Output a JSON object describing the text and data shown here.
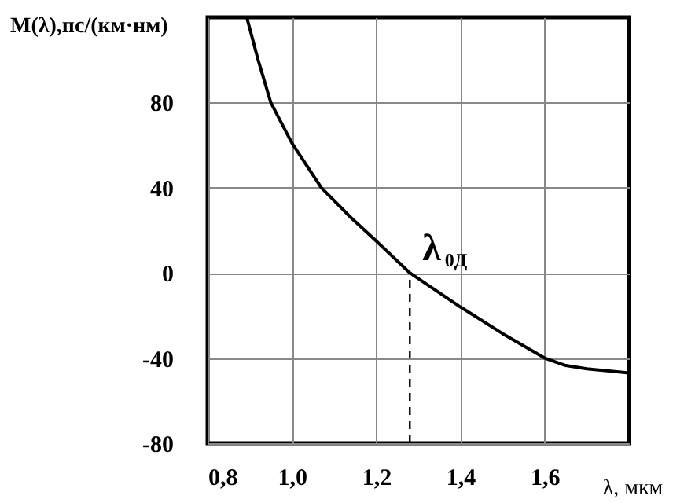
{
  "chart_data": {
    "type": "line",
    "xlabel": "λ, мкм",
    "ylabel": "M(λ),пс/(км·нм)",
    "x": [
      0.893,
      0.92,
      0.95,
      1.0,
      1.07,
      1.14,
      1.2,
      1.28,
      1.4,
      1.5,
      1.6,
      1.65,
      1.7,
      1.8
    ],
    "series": [
      {
        "color": "#000000",
        "values": [
          120,
          100,
          80,
          61,
          40,
          26,
          15,
          0,
          -16,
          -28.5,
          -40,
          -43.5,
          -45,
          -47
        ]
      }
    ],
    "xlim": [
      0.8,
      1.8
    ],
    "xticks": [
      {
        "value": 0.8,
        "label": "0,8"
      },
      {
        "value": 1.0,
        "label": "1,0"
      },
      {
        "value": 1.2,
        "label": "1,2"
      },
      {
        "value": 1.4,
        "label": "1,4"
      },
      {
        "value": 1.6,
        "label": "1,6"
      }
    ],
    "ylim": [
      -80,
      120
    ],
    "yticks": [
      -80,
      -40,
      0,
      40,
      80
    ],
    "grid": true,
    "annotations": [
      {
        "text": "λ$_{0Д}$",
        "x": 1.28,
        "y": 0
      }
    ],
    "ref_lines": [
      {
        "axis": "x",
        "value": 1.28,
        "line_style": "dashed",
        "color": "#000000"
      }
    ]
  }
}
